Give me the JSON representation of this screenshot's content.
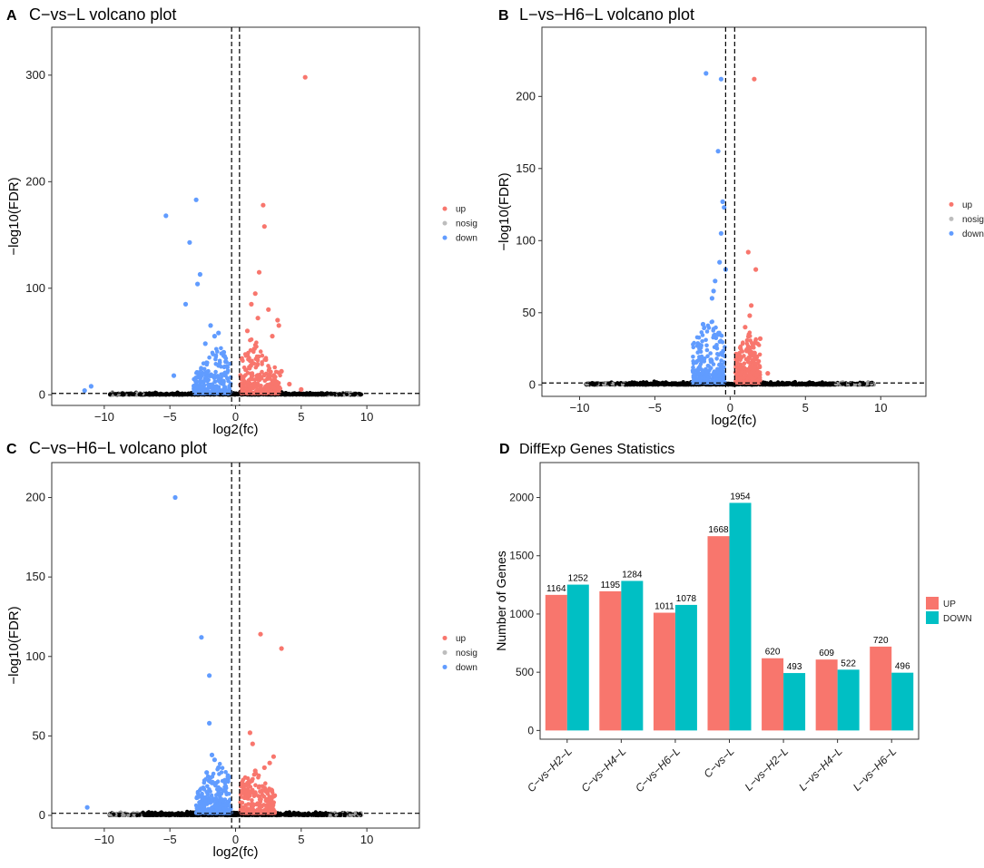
{
  "figure": {
    "panel_labels": [
      "A",
      "B",
      "C",
      "D"
    ]
  },
  "legend_volcano": [
    {
      "name": "up",
      "color": "#F8766D"
    },
    {
      "name": "nosig",
      "color": "#BDBDBD"
    },
    {
      "name": "down",
      "color": "#619CFF"
    }
  ],
  "legend_bar": [
    {
      "name": "UP",
      "color": "#F8766D"
    },
    {
      "name": "DOWN",
      "color": "#00BFC4"
    }
  ],
  "chart_data": [
    {
      "type": "scatter",
      "id": "A",
      "title": "C−vs−L volcano plot",
      "xlabel": "log2(fc)",
      "ylabel": "−log10(FDR)",
      "xlim": [
        -14,
        14
      ],
      "ylim": [
        -10,
        345
      ],
      "xticks": [
        -10,
        -5,
        0,
        5,
        10
      ],
      "xtick_labels": [
        "−10",
        "−5",
        "0",
        "5",
        "10"
      ],
      "yticks": [
        0,
        100,
        200,
        300
      ],
      "fc_cutoff": 0.3,
      "fdr_cutoff": 1.3,
      "series": [
        {
          "name": "up",
          "points": [
            [
              5.3,
              298
            ],
            [
              2.1,
              178
            ],
            [
              2.2,
              158
            ],
            [
              1.8,
              115
            ],
            [
              1.5,
              95
            ],
            [
              3.2,
              70
            ],
            [
              3.3,
              65
            ],
            [
              1.2,
              85
            ],
            [
              2.5,
              80
            ],
            [
              1.7,
              72
            ],
            [
              0.9,
              60
            ],
            [
              2.8,
              55
            ],
            [
              4.1,
              10
            ],
            [
              5,
              5
            ],
            [
              3.5,
              22
            ]
          ]
        },
        {
          "name": "down",
          "points": [
            [
              -3.0,
              183
            ],
            [
              -5.3,
              168
            ],
            [
              -3.5,
              143
            ],
            [
              -2.7,
              113
            ],
            [
              -2.9,
              104
            ],
            [
              -3.8,
              85
            ],
            [
              -1.9,
              65
            ],
            [
              -1.6,
              55
            ],
            [
              -2.3,
              48
            ],
            [
              -1.3,
              58
            ],
            [
              -4.7,
              18
            ],
            [
              -11.0,
              8
            ],
            [
              -11.5,
              4
            ],
            [
              -0.9,
              40
            ]
          ]
        }
      ],
      "cloud": {
        "up": [
          0.35,
          3.4,
          55
        ],
        "down": [
          -3.2,
          -0.35,
          45
        ]
      }
    },
    {
      "type": "scatter",
      "id": "B",
      "title": "L−vs−H6−L volcano plot",
      "xlabel": "log2(fc)",
      "ylabel": "−log10(FDR)",
      "xlim": [
        -12.5,
        13
      ],
      "ylim": [
        -8,
        248
      ],
      "xticks": [
        -10,
        -5,
        0,
        5,
        10
      ],
      "xtick_labels": [
        "−10",
        "−5",
        "0",
        "5",
        "10"
      ],
      "yticks": [
        0,
        50,
        100,
        150,
        200
      ],
      "fc_cutoff": 0.3,
      "fdr_cutoff": 1.3,
      "series": [
        {
          "name": "up",
          "points": [
            [
              1.6,
              212
            ],
            [
              1.2,
              92
            ],
            [
              1.7,
              80
            ],
            [
              1.4,
              55
            ],
            [
              1.3,
              48
            ],
            [
              1.0,
              40
            ],
            [
              2.0,
              32
            ],
            [
              2.5,
              8
            ],
            [
              1.6,
              22
            ]
          ]
        },
        {
          "name": "down",
          "points": [
            [
              -1.6,
              216
            ],
            [
              -0.6,
              212
            ],
            [
              -0.8,
              162
            ],
            [
              -0.5,
              127
            ],
            [
              -0.4,
              123
            ],
            [
              -0.6,
              105
            ],
            [
              -0.7,
              85
            ],
            [
              -1.2,
              60
            ],
            [
              -1.1,
              65
            ],
            [
              -0.3,
              80
            ],
            [
              -1.0,
              72
            ],
            [
              -1.8,
              42
            ]
          ]
        }
      ],
      "cloud": {
        "up": [
          0.35,
          2.0,
          35
        ],
        "down": [
          -2.5,
          -0.35,
          45
        ]
      }
    },
    {
      "type": "scatter",
      "id": "C",
      "title": "C−vs−H6−L volcano plot",
      "xlabel": "log2(fc)",
      "ylabel": "−log10(FDR)",
      "xlim": [
        -14,
        14
      ],
      "ylim": [
        -8,
        222
      ],
      "xticks": [
        -10,
        -5,
        0,
        5,
        10
      ],
      "xtick_labels": [
        "−10",
        "−5",
        "0",
        "5",
        "10"
      ],
      "yticks": [
        0,
        50,
        100,
        150,
        200
      ],
      "fc_cutoff": 0.3,
      "fdr_cutoff": 1.3,
      "series": [
        {
          "name": "up",
          "points": [
            [
              1.9,
              114
            ],
            [
              3.5,
              105
            ],
            [
              1.1,
              52
            ],
            [
              2.9,
              37
            ],
            [
              2.6,
              33
            ],
            [
              1.3,
              45
            ],
            [
              2.2,
              30
            ],
            [
              1.5,
              28
            ]
          ]
        },
        {
          "name": "down",
          "points": [
            [
              -4.6,
              200
            ],
            [
              -2.6,
              112
            ],
            [
              -2.0,
              88
            ],
            [
              -2.0,
              58
            ],
            [
              -1.8,
              38
            ],
            [
              -1.6,
              35
            ],
            [
              -1.3,
              30
            ],
            [
              -2.2,
              27
            ],
            [
              -11.3,
              5
            ]
          ]
        }
      ],
      "cloud": {
        "up": [
          0.35,
          3.0,
          28
        ],
        "down": [
          -3.0,
          -0.35,
          32
        ]
      }
    },
    {
      "type": "bar",
      "id": "D",
      "title": "DiffExp Genes Statistics",
      "ylabel": "Number of Genes",
      "xlabel": "",
      "ylim": [
        -75,
        2300
      ],
      "yticks": [
        0,
        500,
        1000,
        1500,
        2000
      ],
      "categories": [
        "C−vs−H2−L",
        "C−vs−H4−L",
        "C−vs−H6−L",
        "C−vs−L",
        "L−vs−H2−L",
        "L−vs−H4−L",
        "L−vs−H6−L"
      ],
      "series": [
        {
          "name": "UP",
          "values": [
            1164,
            1195,
            1011,
            1668,
            620,
            609,
            720
          ]
        },
        {
          "name": "DOWN",
          "values": [
            1252,
            1284,
            1078,
            1954,
            493,
            522,
            496
          ]
        }
      ]
    }
  ]
}
